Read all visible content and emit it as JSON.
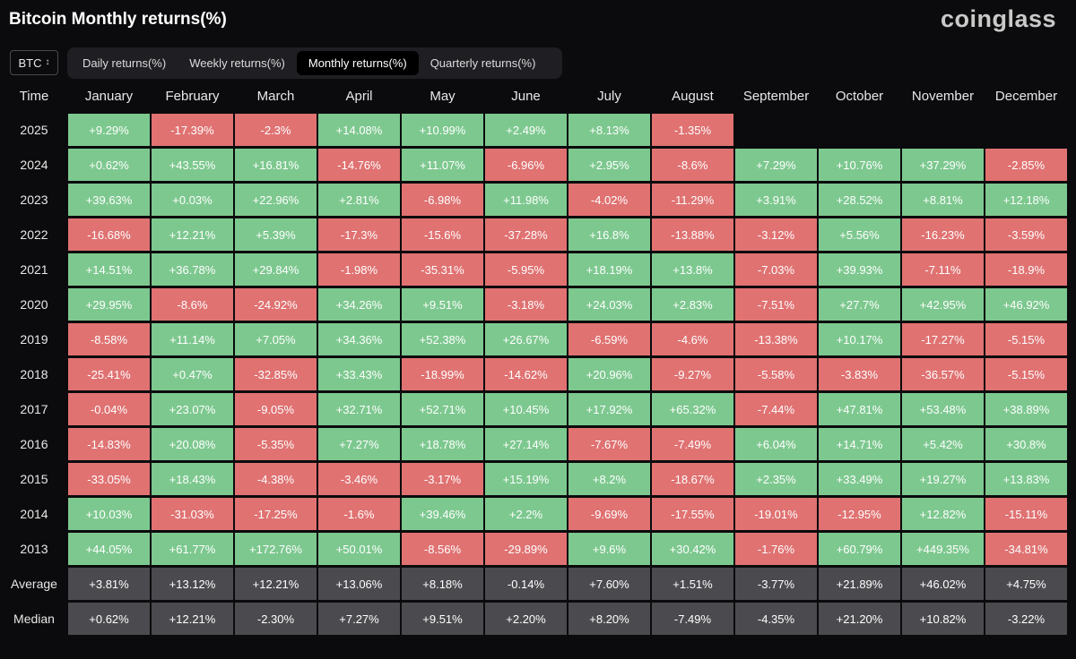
{
  "title": "Bitcoin Monthly returns(%)",
  "brand": "coinglass",
  "asset_select": {
    "value": "BTC",
    "icon": "chevron-up-down-icon"
  },
  "tabs": [
    {
      "label": "Daily returns(%)",
      "active": false
    },
    {
      "label": "Weekly returns(%)",
      "active": false
    },
    {
      "label": "Monthly returns(%)",
      "active": true
    },
    {
      "label": "Quarterly returns(%)",
      "active": false
    }
  ],
  "colors": {
    "positive": "#7dc88f",
    "negative": "#e07272",
    "stat": "#4b4b4f",
    "background": "#0b0b0d"
  },
  "table": {
    "corner": "Time",
    "months": [
      "January",
      "February",
      "March",
      "April",
      "May",
      "June",
      "July",
      "August",
      "September",
      "October",
      "November",
      "December"
    ],
    "rows": [
      {
        "year": "2025",
        "values": [
          "+9.29%",
          "-17.39%",
          "-2.3%",
          "+14.08%",
          "+10.99%",
          "+2.49%",
          "+8.13%",
          "-1.35%",
          "",
          "",
          "",
          ""
        ]
      },
      {
        "year": "2024",
        "values": [
          "+0.62%",
          "+43.55%",
          "+16.81%",
          "-14.76%",
          "+11.07%",
          "-6.96%",
          "+2.95%",
          "-8.6%",
          "+7.29%",
          "+10.76%",
          "+37.29%",
          "-2.85%"
        ]
      },
      {
        "year": "2023",
        "values": [
          "+39.63%",
          "+0.03%",
          "+22.96%",
          "+2.81%",
          "-6.98%",
          "+11.98%",
          "-4.02%",
          "-11.29%",
          "+3.91%",
          "+28.52%",
          "+8.81%",
          "+12.18%"
        ]
      },
      {
        "year": "2022",
        "values": [
          "-16.68%",
          "+12.21%",
          "+5.39%",
          "-17.3%",
          "-15.6%",
          "-37.28%",
          "+16.8%",
          "-13.88%",
          "-3.12%",
          "+5.56%",
          "-16.23%",
          "-3.59%"
        ]
      },
      {
        "year": "2021",
        "values": [
          "+14.51%",
          "+36.78%",
          "+29.84%",
          "-1.98%",
          "-35.31%",
          "-5.95%",
          "+18.19%",
          "+13.8%",
          "-7.03%",
          "+39.93%",
          "-7.11%",
          "-18.9%"
        ]
      },
      {
        "year": "2020",
        "values": [
          "+29.95%",
          "-8.6%",
          "-24.92%",
          "+34.26%",
          "+9.51%",
          "-3.18%",
          "+24.03%",
          "+2.83%",
          "-7.51%",
          "+27.7%",
          "+42.95%",
          "+46.92%"
        ]
      },
      {
        "year": "2019",
        "values": [
          "-8.58%",
          "+11.14%",
          "+7.05%",
          "+34.36%",
          "+52.38%",
          "+26.67%",
          "-6.59%",
          "-4.6%",
          "-13.38%",
          "+10.17%",
          "-17.27%",
          "-5.15%"
        ]
      },
      {
        "year": "2018",
        "values": [
          "-25.41%",
          "+0.47%",
          "-32.85%",
          "+33.43%",
          "-18.99%",
          "-14.62%",
          "+20.96%",
          "-9.27%",
          "-5.58%",
          "-3.83%",
          "-36.57%",
          "-5.15%"
        ]
      },
      {
        "year": "2017",
        "values": [
          "-0.04%",
          "+23.07%",
          "-9.05%",
          "+32.71%",
          "+52.71%",
          "+10.45%",
          "+17.92%",
          "+65.32%",
          "-7.44%",
          "+47.81%",
          "+53.48%",
          "+38.89%"
        ]
      },
      {
        "year": "2016",
        "values": [
          "-14.83%",
          "+20.08%",
          "-5.35%",
          "+7.27%",
          "+18.78%",
          "+27.14%",
          "-7.67%",
          "-7.49%",
          "+6.04%",
          "+14.71%",
          "+5.42%",
          "+30.8%"
        ]
      },
      {
        "year": "2015",
        "values": [
          "-33.05%",
          "+18.43%",
          "-4.38%",
          "-3.46%",
          "-3.17%",
          "+15.19%",
          "+8.2%",
          "-18.67%",
          "+2.35%",
          "+33.49%",
          "+19.27%",
          "+13.83%"
        ]
      },
      {
        "year": "2014",
        "values": [
          "+10.03%",
          "-31.03%",
          "-17.25%",
          "-1.6%",
          "+39.46%",
          "+2.2%",
          "-9.69%",
          "-17.55%",
          "-19.01%",
          "-12.95%",
          "+12.82%",
          "-15.11%"
        ]
      },
      {
        "year": "2013",
        "values": [
          "+44.05%",
          "+61.77%",
          "+172.76%",
          "+50.01%",
          "-8.56%",
          "-29.89%",
          "+9.6%",
          "+30.42%",
          "-1.76%",
          "+60.79%",
          "+449.35%",
          "-34.81%"
        ]
      }
    ],
    "stats": [
      {
        "label": "Average",
        "values": [
          "+3.81%",
          "+13.12%",
          "+12.21%",
          "+13.06%",
          "+8.18%",
          "-0.14%",
          "+7.60%",
          "+1.51%",
          "-3.77%",
          "+21.89%",
          "+46.02%",
          "+4.75%"
        ]
      },
      {
        "label": "Median",
        "values": [
          "+0.62%",
          "+12.21%",
          "-2.30%",
          "+7.27%",
          "+9.51%",
          "+2.20%",
          "+8.20%",
          "-7.49%",
          "-4.35%",
          "+21.20%",
          "+10.82%",
          "-3.22%"
        ]
      }
    ]
  }
}
